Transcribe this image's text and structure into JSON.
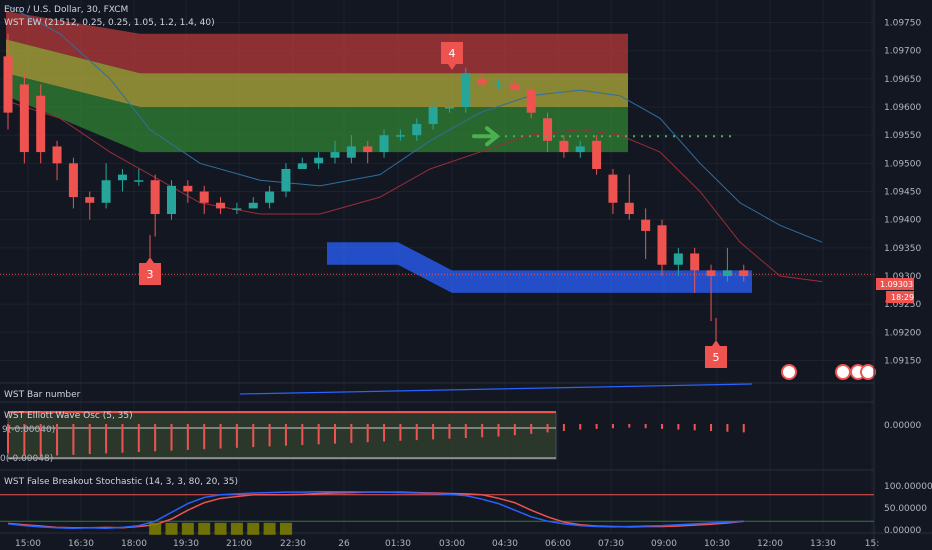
{
  "header": {
    "symbol_title": "Euro / U.S. Dollar, 30, FXCM",
    "indicator_title": "WST EW (21512, 0.25, 0.25, 1.05, 1.2, 1.4, 40)"
  },
  "price_tag": {
    "price": "1.09303",
    "countdown": "18:29"
  },
  "panes": {
    "bar_number": "WST Bar number",
    "elliott": "WST Elliott Wave Osc (5, 35)",
    "stoch": "WST False Breakout Stochastic (14, 3, 3, 80, 20, 35)"
  },
  "elliott_values": {
    "upper": "9(-0.00040)",
    "lower": "0(-0.00048)"
  },
  "wave_labels": [
    "3",
    "4",
    "5"
  ],
  "time_labels": [
    "15:00",
    "16:30",
    "18:00",
    "19:30",
    "21:00",
    "22:30",
    "26",
    "01:30",
    "03:00",
    "04:30",
    "06:00",
    "07:30",
    "09:00",
    "10:30",
    "12:00",
    "13:30",
    "15:"
  ],
  "colors": {
    "background": "#131722",
    "bull": "#26a69a",
    "bear": "#ef5350",
    "zone_red": "#b73a3a",
    "zone_yellow": "#a7a43a",
    "zone_green": "#2e7d32",
    "target_box": "#2962ff",
    "arrow": "#4caf50"
  },
  "chart_data": [
    {
      "type": "candlestick",
      "title": "Euro / U.S. Dollar, 30, FXCM",
      "ylim": [
        1.0911,
        1.0979
      ],
      "y_ticks": [
        1.0915,
        1.092,
        1.0925,
        1.093,
        1.0935,
        1.094,
        1.0945,
        1.095,
        1.0955,
        1.096,
        1.0965,
        1.097,
        1.0975
      ],
      "x_ticks": [
        "15:00",
        "16:30",
        "18:00",
        "19:30",
        "21:00",
        "22:30",
        "26",
        "01:30",
        "03:00",
        "04:30",
        "06:00",
        "07:30",
        "09:00",
        "10:30",
        "12:00",
        "13:30",
        "15:"
      ],
      "last_price": 1.09303,
      "candles": [
        {
          "o": 1.0969,
          "h": 1.0973,
          "l": 1.0956,
          "c": 1.0959
        },
        {
          "o": 1.0964,
          "h": 1.0966,
          "l": 1.095,
          "c": 1.0952
        },
        {
          "o": 1.0962,
          "h": 1.0964,
          "l": 1.095,
          "c": 1.0952
        },
        {
          "o": 1.0953,
          "h": 1.0954,
          "l": 1.0947,
          "c": 1.095
        },
        {
          "o": 1.095,
          "h": 1.0951,
          "l": 1.0942,
          "c": 1.0944
        },
        {
          "o": 1.0944,
          "h": 1.0945,
          "l": 1.094,
          "c": 1.0943
        },
        {
          "o": 1.0943,
          "h": 1.095,
          "l": 1.0942,
          "c": 1.0947
        },
        {
          "o": 1.0947,
          "h": 1.0949,
          "l": 1.0945,
          "c": 1.0948
        },
        {
          "o": 1.0947,
          "h": 1.0949,
          "l": 1.0946,
          "c": 1.0947
        },
        {
          "o": 1.0947,
          "h": 1.0948,
          "l": 1.0937,
          "c": 1.0941
        },
        {
          "o": 1.0941,
          "h": 1.0947,
          "l": 1.094,
          "c": 1.0946
        },
        {
          "o": 1.0946,
          "h": 1.0947,
          "l": 1.0943,
          "c": 1.0945
        },
        {
          "o": 1.0945,
          "h": 1.0946,
          "l": 1.0941,
          "c": 1.0943
        },
        {
          "o": 1.0943,
          "h": 1.0944,
          "l": 1.0941,
          "c": 1.0942
        },
        {
          "o": 1.0942,
          "h": 1.0943,
          "l": 1.0941,
          "c": 1.0942
        },
        {
          "o": 1.0942,
          "h": 1.0944,
          "l": 1.0942,
          "c": 1.0943
        },
        {
          "o": 1.0943,
          "h": 1.0946,
          "l": 1.0942,
          "c": 1.0945
        },
        {
          "o": 1.0945,
          "h": 1.095,
          "l": 1.0944,
          "c": 1.0949
        },
        {
          "o": 1.0949,
          "h": 1.0951,
          "l": 1.0949,
          "c": 1.095
        },
        {
          "o": 1.095,
          "h": 1.0952,
          "l": 1.0949,
          "c": 1.0951
        },
        {
          "o": 1.0951,
          "h": 1.0954,
          "l": 1.095,
          "c": 1.0952
        },
        {
          "o": 1.0951,
          "h": 1.0955,
          "l": 1.095,
          "c": 1.0953
        },
        {
          "o": 1.0953,
          "h": 1.0954,
          "l": 1.095,
          "c": 1.0952
        },
        {
          "o": 1.0952,
          "h": 1.0956,
          "l": 1.0951,
          "c": 1.0955
        },
        {
          "o": 1.0955,
          "h": 1.0956,
          "l": 1.0954,
          "c": 1.0955
        },
        {
          "o": 1.0955,
          "h": 1.0958,
          "l": 1.0954,
          "c": 1.0957
        },
        {
          "o": 1.0957,
          "h": 1.0961,
          "l": 1.0956,
          "c": 1.096
        },
        {
          "o": 1.096,
          "h": 1.0962,
          "l": 1.0959,
          "c": 1.096
        },
        {
          "o": 1.096,
          "h": 1.0967,
          "l": 1.0959,
          "c": 1.0966
        },
        {
          "o": 1.0965,
          "h": 1.0966,
          "l": 1.0964,
          "c": 1.0964
        },
        {
          "o": 1.0964,
          "h": 1.0965,
          "l": 1.0963,
          "c": 1.0964
        },
        {
          "o": 1.0964,
          "h": 1.0965,
          "l": 1.0963,
          "c": 1.0963
        },
        {
          "o": 1.0963,
          "h": 1.0964,
          "l": 1.0958,
          "c": 1.0959
        },
        {
          "o": 1.0958,
          "h": 1.0959,
          "l": 1.0952,
          "c": 1.0954
        },
        {
          "o": 1.0954,
          "h": 1.0955,
          "l": 1.0951,
          "c": 1.0952
        },
        {
          "o": 1.0952,
          "h": 1.0954,
          "l": 1.0951,
          "c": 1.0953
        },
        {
          "o": 1.0954,
          "h": 1.0955,
          "l": 1.0948,
          "c": 1.0949
        },
        {
          "o": 1.0948,
          "h": 1.0949,
          "l": 1.0941,
          "c": 1.0943
        },
        {
          "o": 1.0943,
          "h": 1.0948,
          "l": 1.094,
          "c": 1.0941
        },
        {
          "o": 1.094,
          "h": 1.0942,
          "l": 1.0933,
          "c": 1.0938
        },
        {
          "o": 1.0939,
          "h": 1.094,
          "l": 1.093,
          "c": 1.0932
        },
        {
          "o": 1.0932,
          "h": 1.0935,
          "l": 1.093,
          "c": 1.0934
        },
        {
          "o": 1.0934,
          "h": 1.0935,
          "l": 1.0927,
          "c": 1.0931
        },
        {
          "o": 1.0931,
          "h": 1.0932,
          "l": 1.0922,
          "c": 1.093
        },
        {
          "o": 1.093,
          "h": 1.0935,
          "l": 1.0929,
          "c": 1.0931
        },
        {
          "o": 1.0931,
          "h": 1.0932,
          "l": 1.0929,
          "c": 1.093
        }
      ]
    },
    {
      "type": "bar",
      "title": "WST Elliott Wave Osc (5, 35)",
      "y_ticks": [
        "0.00000"
      ],
      "values": [
        -0.00042,
        -0.00045,
        -0.00046,
        -0.00045,
        -0.00044,
        -0.00043,
        -0.00042,
        -0.00041,
        -0.0004,
        -0.00039,
        -0.00038,
        -0.00037,
        -0.00036,
        -0.00035,
        -0.00034,
        -0.00033,
        -0.00032,
        -0.00031,
        -0.0003,
        -0.00029,
        -0.00028,
        -0.00027,
        -0.00026,
        -0.00025,
        -0.00024,
        -0.00023,
        -0.00022,
        -0.00021,
        -0.0002,
        -0.00019,
        -0.00018,
        -0.00016,
        -0.00014,
        -0.00012,
        -0.0001,
        -8e-05,
        -7e-05,
        -6e-05,
        -5e-05,
        -6e-05,
        -7e-05,
        -8e-05,
        -9e-05,
        -0.0001,
        -0.00011,
        -0.00012
      ]
    },
    {
      "type": "line",
      "title": "WST False Breakout Stochastic (14, 3, 3, 80, 20, 35)",
      "y_ticks": [
        "100.00000",
        "50.00000",
        "0.00000"
      ],
      "ylim": [
        -10,
        105
      ],
      "series": [
        {
          "values": [
            15,
            12,
            9,
            6,
            5,
            5,
            6,
            5,
            8,
            12,
            25,
            45,
            62,
            72,
            76,
            80,
            80,
            80,
            81,
            83,
            84,
            85,
            86,
            86,
            86,
            85,
            84,
            83,
            82,
            80,
            72,
            62,
            45,
            30,
            18,
            12,
            9,
            8,
            7,
            8,
            8,
            9,
            11,
            13,
            16,
            20
          ]
        },
        {
          "values": [
            14,
            10,
            7,
            5,
            4,
            5,
            4,
            6,
            10,
            20,
            40,
            60,
            74,
            80,
            82,
            84,
            85,
            86,
            86,
            87,
            87,
            87,
            86,
            86,
            85,
            84,
            83,
            81,
            78,
            70,
            60,
            45,
            30,
            20,
            14,
            10,
            8,
            7,
            8,
            9,
            10,
            12,
            14,
            16,
            18,
            20
          ]
        }
      ]
    }
  ]
}
